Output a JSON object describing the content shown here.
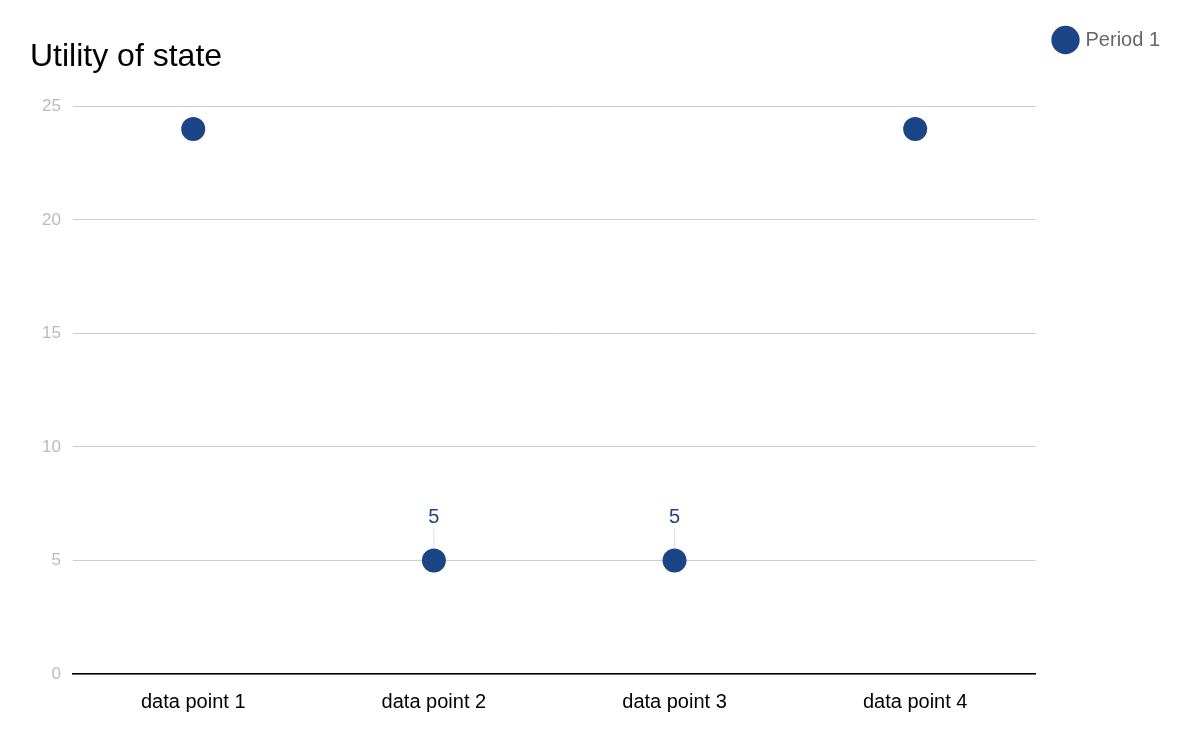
{
  "chart_data": {
    "type": "scatter",
    "title": "Utility of state",
    "categories": [
      "data point 1",
      "data point 2",
      "data point 3",
      "data point 4"
    ],
    "series": [
      {
        "name": "Period 1",
        "color": "#1c4587",
        "marker": "circle",
        "values": [
          24,
          5,
          5,
          24
        ],
        "value_labels": [
          null,
          "5",
          "5",
          null
        ]
      }
    ],
    "ylim": [
      0,
      25
    ],
    "yticks": [
      0,
      5,
      10,
      15,
      20,
      25
    ],
    "grid": true,
    "legend": "right",
    "data_labels": true
  }
}
